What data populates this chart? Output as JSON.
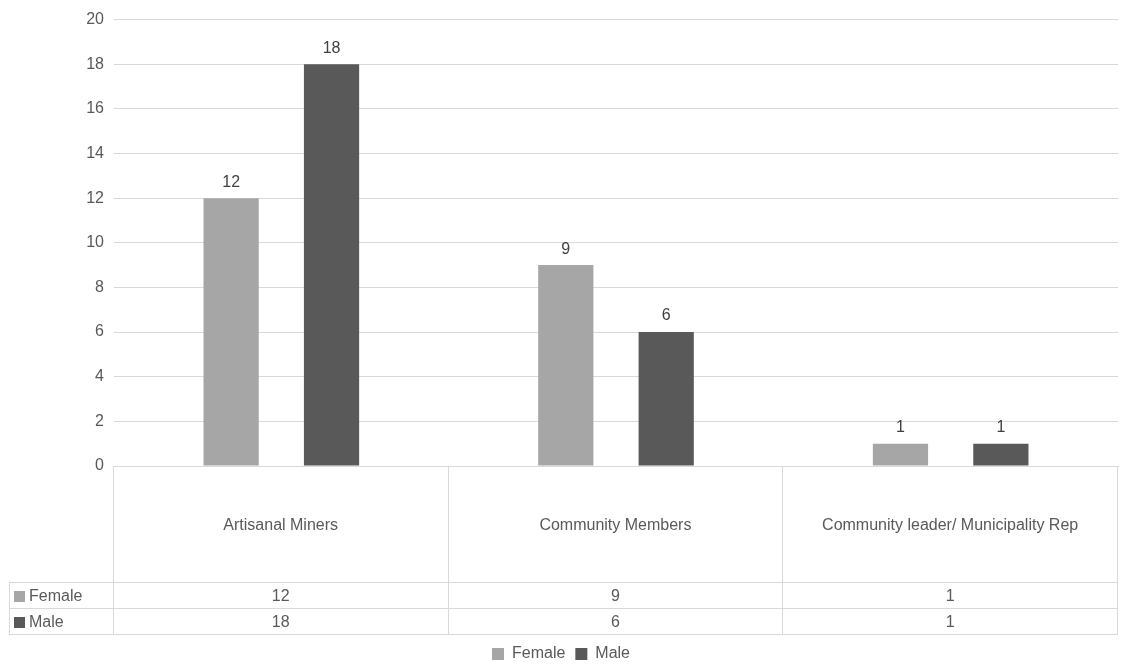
{
  "chart_data": {
    "type": "bar",
    "categories": [
      "Artisanal Miners",
      "Community Members",
      "Community leader/ Municipality Rep"
    ],
    "series": [
      {
        "name": "Female",
        "color": "#a6a6a6",
        "values": [
          12,
          9,
          1
        ],
        "value_labels": [
          "12",
          "9",
          "1"
        ]
      },
      {
        "name": "Male",
        "color": "#595959",
        "values": [
          18,
          6,
          1
        ],
        "value_labels": [
          "18",
          "6",
          "1"
        ]
      }
    ],
    "ylim": [
      0,
      20
    ],
    "yticks": [
      0,
      2,
      4,
      6,
      8,
      10,
      12,
      14,
      16,
      18,
      20
    ],
    "annotations": [
      "12",
      "9",
      "1",
      "18",
      "6",
      "1"
    ],
    "grid": "y",
    "legend": "bottom",
    "data_labels": true
  }
}
